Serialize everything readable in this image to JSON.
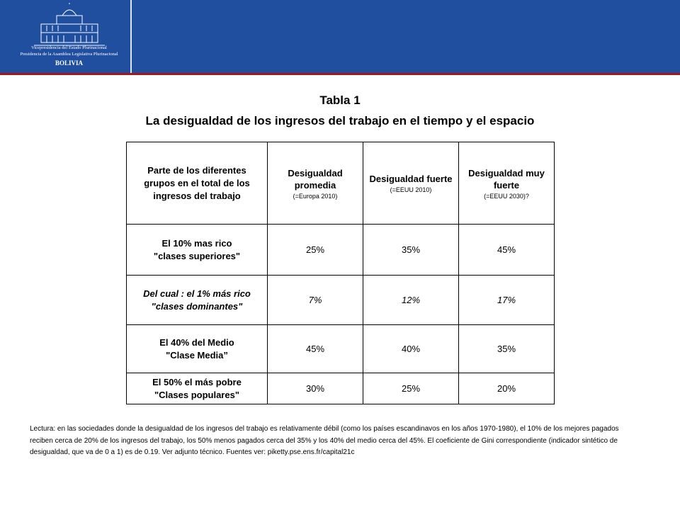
{
  "header": {
    "institution": [
      "Vicepresidencia del Estado Plurinacional",
      "Presidencia de la Asamblea Legislativa Plurinacional"
    ],
    "country": "BOLIVIA"
  },
  "title": "Tabla 1",
  "subtitle": "La desigualdad  de los ingresos del trabajo en el tiempo y el espacio",
  "table": {
    "header": [
      "Parte de los diferentes grupos en el total de los ingresos del trabajo",
      {
        "title": "Desigualdad promedia",
        "note": "(=Europa 2010)"
      },
      {
        "title": "Desigualdad fuerte",
        "note": "(=EEUU 2010)"
      },
      {
        "title": "Desigualdad muy fuerte",
        "note": "(=EEUU 2030)?"
      }
    ],
    "rows": [
      {
        "label": [
          "El 10% mas rico",
          "\"clases  superiores\""
        ],
        "values": [
          "25%",
          "35%",
          "45%"
        ]
      },
      {
        "label": [
          "Del cual : el 1% más rico",
          "\"clases dominantes\""
        ],
        "values": [
          "7%",
          "12%",
          "17%"
        ]
      },
      {
        "label": [
          "El 40% del Medio",
          "\"Clase Media”"
        ],
        "values": [
          "45%",
          "40%",
          "35%"
        ]
      },
      {
        "label": [
          "El 50% el más pobre",
          "\"Clases populares\""
        ],
        "values": [
          "30%",
          "25%",
          "20%"
        ]
      }
    ]
  },
  "footnote": "Lectura: en las sociedades donde la desigualdad de los ingresos del trabajo es relativamente débil (como los países escandinavos en los años 1970-1980), el 10% de los mejores pagados reciben cerca de 20% de los ingresos del trabajo, los 50% menos pagados cerca del 35% y los 40% del medio cerca del 45%. El coeficiente de Gini correspondiente (indicador sintético de desigualdad, que va de 0 a 1) es de 0.19. Ver adjunto técnico. Fuentes ver: piketty.pse.ens.fr/capital21c"
}
